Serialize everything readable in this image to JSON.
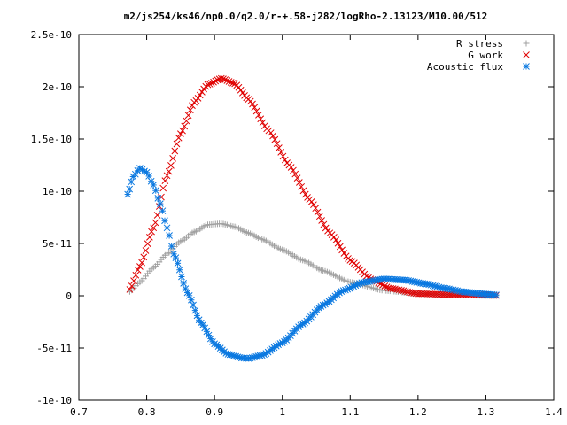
{
  "chart_data": {
    "type": "scatter",
    "title": "m2/js254/ks46/np0.0/q2.0/r-+.58-j282/logRho-2.13123/M10.00/512",
    "xlabel": "",
    "ylabel": "",
    "xlim": [
      0.7,
      1.4
    ],
    "ylim": [
      -1e-10,
      2.5e-10
    ],
    "grid": false,
    "legend_position": "top-right",
    "x_ticks": [
      0.7,
      0.8,
      0.9,
      1,
      1.1,
      1.2,
      1.3,
      1.4
    ],
    "x_tick_labels": [
      "0.7",
      "0.8",
      "0.9",
      "1",
      "1.1",
      "1.2",
      "1.3",
      "1.4"
    ],
    "y_ticks": [
      -1e-10,
      -5e-11,
      0,
      5e-11,
      1e-10,
      1.5e-10,
      2e-10,
      2.5e-10
    ],
    "y_tick_labels": [
      "-1e-10",
      "-5e-11",
      "0",
      "5e-11",
      "1e-10",
      "1.5e-10",
      "2e-10",
      "2.5e-10"
    ],
    "series": [
      {
        "name": "R stress",
        "marker": "+",
        "color": "#a0a0a0",
        "x": [
          0.775,
          0.79,
          0.81,
          0.83,
          0.85,
          0.87,
          0.89,
          0.91,
          0.93,
          0.95,
          0.97,
          1.0,
          1.03,
          1.06,
          1.1,
          1.15,
          1.2,
          1.25,
          1.3,
          1.315
        ],
        "y": [
          4e-12,
          1.3e-11,
          2.7e-11,
          4e-11,
          5.2e-11,
          6.1e-11,
          6.8e-11,
          6.9e-11,
          6.6e-11,
          6e-11,
          5.4e-11,
          4.4e-11,
          3.4e-11,
          2.4e-11,
          1.3e-11,
          5e-12,
          2e-12,
          8e-13,
          2e-13,
          1e-13
        ]
      },
      {
        "name": "G work",
        "marker": "x",
        "color": "#e00000",
        "x": [
          0.775,
          0.79,
          0.81,
          0.83,
          0.85,
          0.87,
          0.89,
          0.91,
          0.93,
          0.95,
          0.98,
          1.01,
          1.04,
          1.07,
          1.1,
          1.13,
          1.16,
          1.2,
          1.25,
          1.3,
          1.315
        ],
        "y": [
          6e-12,
          2.8e-11,
          6.5e-11,
          1.15e-10,
          1.55e-10,
          1.85e-10,
          2.02e-10,
          2.08e-10,
          2.03e-10,
          1.88e-10,
          1.58e-10,
          1.25e-10,
          9.2e-11,
          6e-11,
          3.4e-11,
          1.6e-11,
          7e-12,
          2e-12,
          1e-12,
          6e-13,
          3e-13
        ]
      },
      {
        "name": "Acoustic flux",
        "marker": "*",
        "color": "#0a78e0",
        "x": [
          0.772,
          0.78,
          0.79,
          0.8,
          0.81,
          0.82,
          0.83,
          0.84,
          0.86,
          0.88,
          0.9,
          0.92,
          0.94,
          0.95,
          0.97,
          1.0,
          1.03,
          1.06,
          1.09,
          1.12,
          1.15,
          1.18,
          1.21,
          1.24,
          1.27,
          1.3,
          1.315
        ],
        "y": [
          9.7e-11,
          1.14e-10,
          1.22e-10,
          1.18e-10,
          1.06e-10,
          8.8e-11,
          6.5e-11,
          4e-11,
          3e-12,
          -2.6e-11,
          -4.6e-11,
          -5.6e-11,
          -5.95e-11,
          -6e-11,
          -5.7e-11,
          -4.5e-11,
          -2.7e-11,
          -9e-12,
          5e-12,
          1.3e-11,
          1.6e-11,
          1.5e-11,
          1.15e-11,
          7e-12,
          3.5e-12,
          1.5e-12,
          8e-13
        ]
      }
    ]
  }
}
